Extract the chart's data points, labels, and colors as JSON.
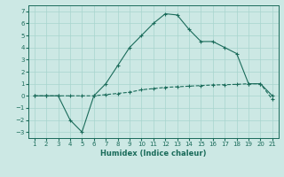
{
  "xlabel": "Humidex (Indice chaleur)",
  "x": [
    1,
    2,
    3,
    4,
    5,
    6,
    7,
    8,
    9,
    10,
    11,
    12,
    13,
    14,
    15,
    16,
    17,
    18,
    19,
    20,
    21
  ],
  "line1": [
    0,
    0,
    0,
    -2,
    -3,
    0,
    1,
    2.5,
    4,
    5,
    6,
    6.8,
    6.7,
    5.5,
    4.5,
    4.5,
    4,
    3.5,
    1,
    1,
    0
  ],
  "line2": [
    0,
    0,
    0,
    0,
    0,
    0,
    0.1,
    0.2,
    0.3,
    0.5,
    0.6,
    0.7,
    0.75,
    0.8,
    0.85,
    0.9,
    0.92,
    0.95,
    1.0,
    1.0,
    -0.3
  ],
  "line_color": "#1a6b5a",
  "bg_color": "#cce8e4",
  "grid_color": "#a8d4ce",
  "ylim": [
    -3.5,
    7.5
  ],
  "xlim": [
    0.5,
    21.5
  ],
  "xlabel_fontsize": 6.0,
  "tick_fontsize": 5.0
}
